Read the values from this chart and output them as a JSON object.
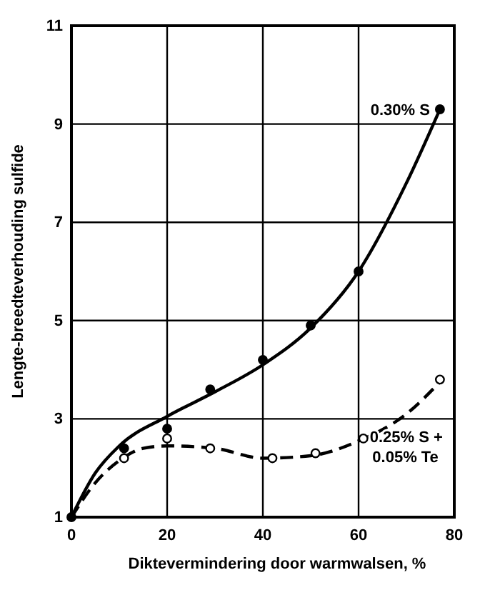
{
  "chart_data": {
    "type": "line",
    "xlabel": "Diktevermindering door warmwalsen, %",
    "ylabel": "Lengte-breedteverhouding sulfide",
    "xlim": [
      0,
      80
    ],
    "xticks": [
      0,
      20,
      40,
      60,
      80
    ],
    "ylim": [
      1,
      11
    ],
    "yticks": [
      1,
      3,
      5,
      7,
      9,
      11
    ],
    "grid": true,
    "marker": "none",
    "series": [
      {
        "name": "0.30% S",
        "line_style": "solid",
        "color": "#000000",
        "x": [
          0,
          5,
          10,
          20,
          30,
          40,
          50,
          60,
          70,
          77
        ],
        "values": [
          1,
          1.9,
          2.45,
          3.05,
          3.55,
          4.1,
          4.85,
          6.0,
          7.8,
          9.3
        ]
      },
      {
        "name": "0.25% S + 0.05% Te",
        "line_style": "dashed",
        "color": "#000000",
        "x": [
          0,
          5,
          10,
          15,
          20,
          30,
          40,
          50,
          60,
          70,
          77
        ],
        "values": [
          1,
          1.7,
          2.15,
          2.4,
          2.45,
          2.4,
          2.2,
          2.25,
          2.55,
          3.1,
          3.75
        ]
      },
      {
        "type": "scatter",
        "marker": "circle",
        "color": "#000000",
        "x": [
          0,
          11,
          20,
          29,
          40,
          50,
          60,
          77
        ],
        "values": [
          1,
          2.4,
          2.8,
          3.6,
          4.2,
          4.9,
          6.0,
          9.3
        ]
      },
      {
        "type": "scatter",
        "marker": "circle",
        "color": "#ffffff",
        "x": [
          11,
          20,
          29,
          42,
          51,
          61,
          77
        ],
        "values": [
          2.2,
          2.6,
          2.4,
          2.2,
          2.3,
          2.6,
          3.8
        ]
      }
    ]
  }
}
